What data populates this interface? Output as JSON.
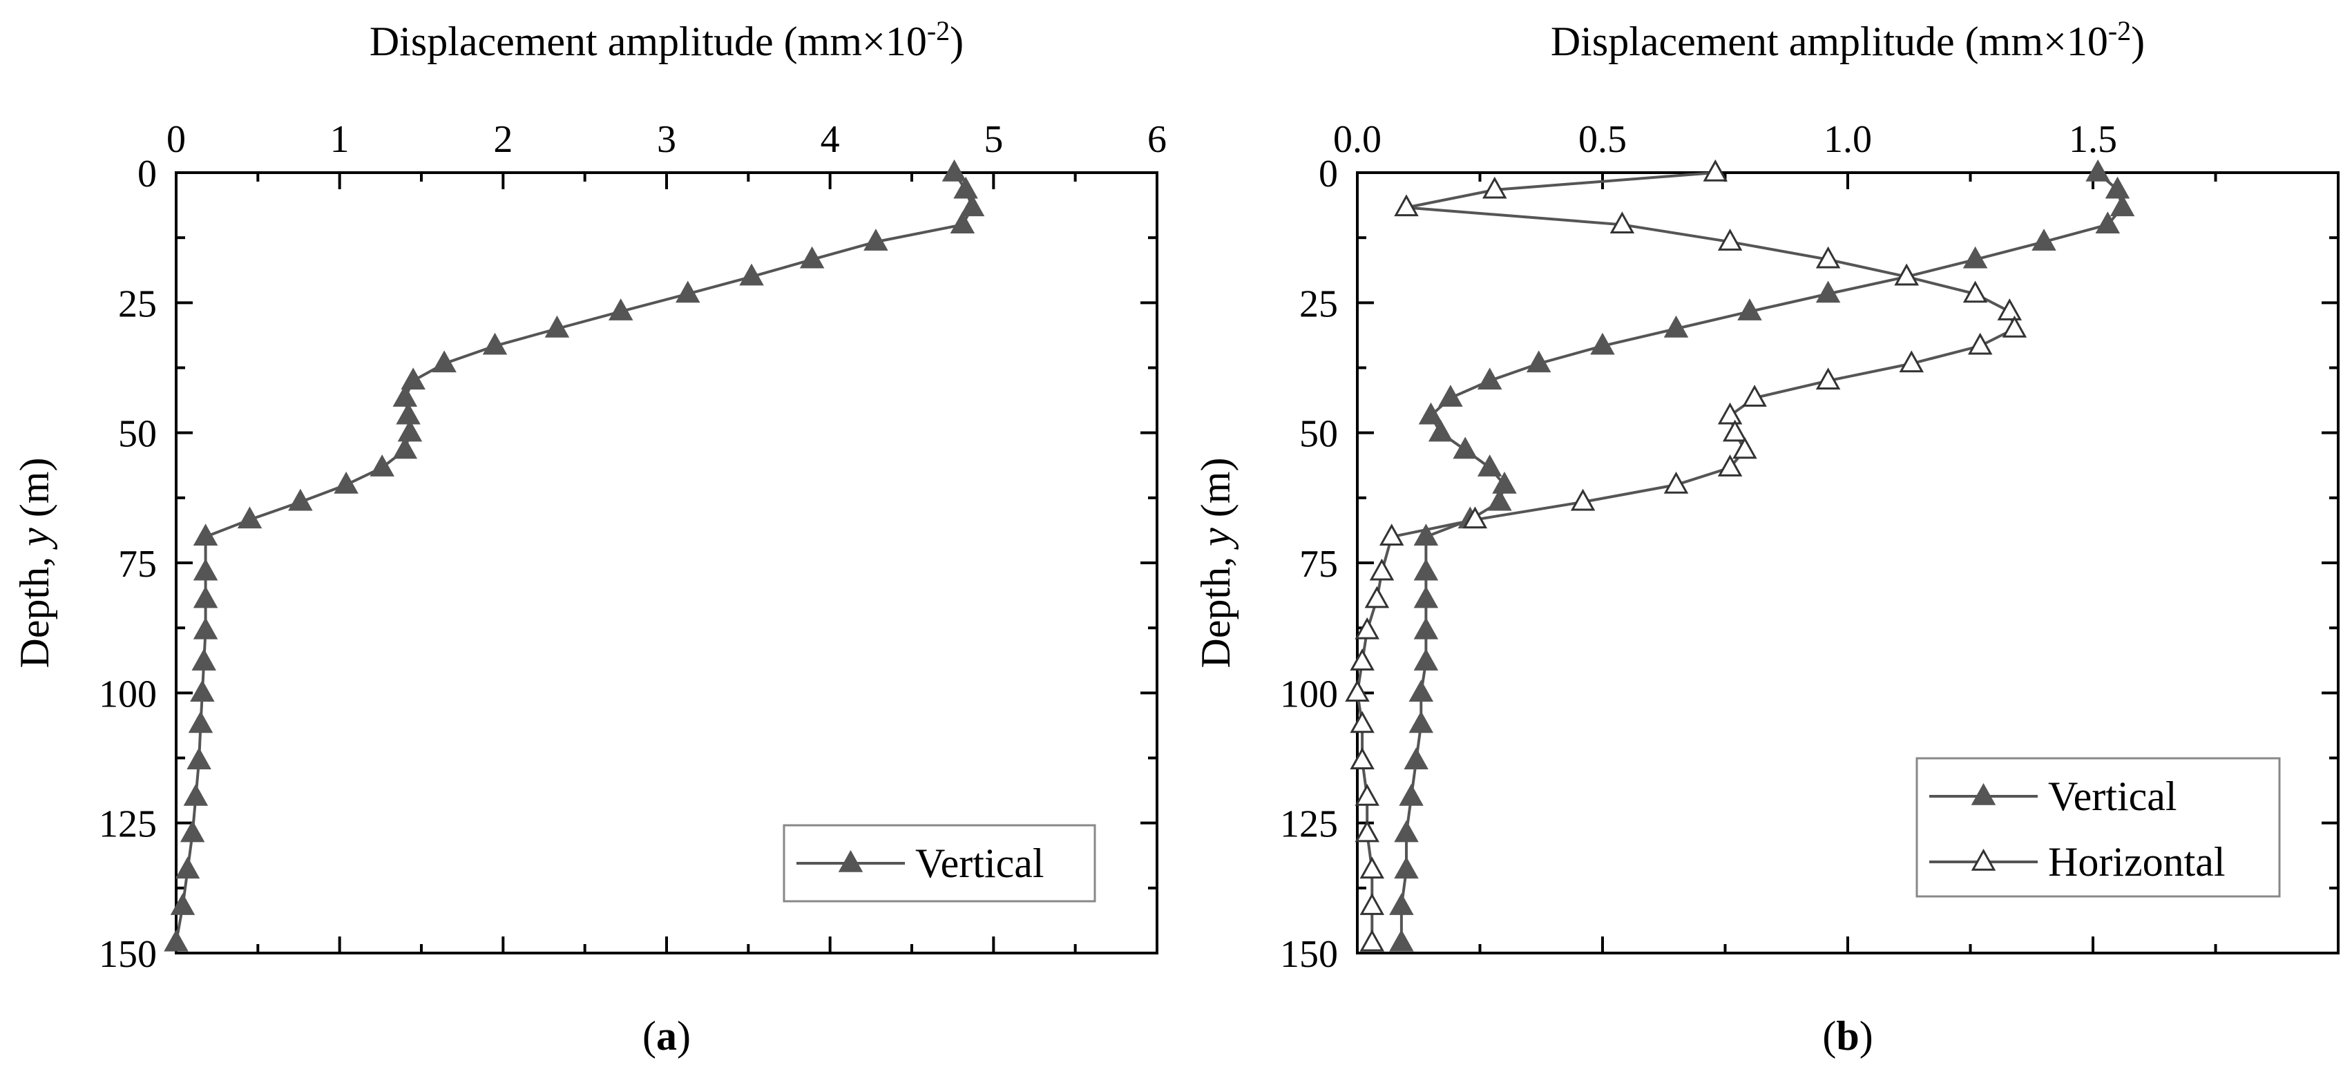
{
  "chart_data": [
    {
      "id": "a",
      "type": "line",
      "panel_label": "a",
      "xlabel": "Displacement amplitude (mm×10",
      "xlabel_exponent": "-2",
      "xlabel_close": ")",
      "ylabel": "Depth, ",
      "ylabel_var": "y",
      "ylabel_unit": " (m)",
      "xlim": [
        0,
        6
      ],
      "ylim": [
        0,
        150
      ],
      "x_axis_position": "top",
      "y_inverted": true,
      "x_ticks": [
        0,
        1,
        2,
        3,
        4,
        5,
        6
      ],
      "x_tick_labels": [
        "0",
        "1",
        "2",
        "3",
        "4",
        "5",
        "6"
      ],
      "y_ticks": [
        0,
        25,
        50,
        75,
        100,
        125,
        150
      ],
      "y_tick_labels": [
        "0",
        "25",
        "50",
        "75",
        "100",
        "125",
        "150"
      ],
      "legend_position": "bottom-right",
      "series": [
        {
          "name": "Vertical",
          "marker": "filled-triangle",
          "color": "#555555",
          "points": [
            [
              4.76,
              0
            ],
            [
              4.83,
              3.3
            ],
            [
              4.87,
              6.7
            ],
            [
              4.81,
              10
            ],
            [
              4.28,
              13.3
            ],
            [
              3.89,
              16.7
            ],
            [
              3.52,
              20
            ],
            [
              3.13,
              23.3
            ],
            [
              2.72,
              26.7
            ],
            [
              2.33,
              30
            ],
            [
              1.95,
              33.3
            ],
            [
              1.64,
              36.7
            ],
            [
              1.45,
              40
            ],
            [
              1.4,
              43.3
            ],
            [
              1.42,
              46.7
            ],
            [
              1.43,
              50
            ],
            [
              1.4,
              53.3
            ],
            [
              1.26,
              56.7
            ],
            [
              1.04,
              60
            ],
            [
              0.76,
              63.3
            ],
            [
              0.45,
              66.7
            ],
            [
              0.18,
              70
            ],
            [
              0.18,
              76.7
            ],
            [
              0.18,
              82
            ],
            [
              0.18,
              88
            ],
            [
              0.17,
              94
            ],
            [
              0.16,
              100
            ],
            [
              0.15,
              106
            ],
            [
              0.14,
              113
            ],
            [
              0.12,
              120
            ],
            [
              0.1,
              127
            ],
            [
              0.07,
              134
            ],
            [
              0.04,
              141
            ],
            [
              0.0,
              148
            ]
          ]
        }
      ]
    },
    {
      "id": "b",
      "type": "line",
      "panel_label": "b",
      "xlabel": "Displacement amplitude (mm×10",
      "xlabel_exponent": "-2",
      "xlabel_close": ")",
      "ylabel": "Depth, ",
      "ylabel_var": "y",
      "ylabel_unit": " (m)",
      "xlim": [
        0,
        2
      ],
      "ylim": [
        0,
        150
      ],
      "x_axis_position": "top",
      "y_inverted": true,
      "x_ticks": [
        0,
        0.5,
        1.0,
        1.5
      ],
      "x_tick_labels": [
        "0.0",
        "0.5",
        "1.0",
        "1.5"
      ],
      "y_ticks": [
        0,
        25,
        50,
        75,
        100,
        125,
        150
      ],
      "y_tick_labels": [
        "0",
        "25",
        "50",
        "75",
        "100",
        "125",
        "150"
      ],
      "legend_position": "bottom-right",
      "series": [
        {
          "name": "Vertical",
          "marker": "filled-triangle",
          "color": "#555555",
          "points": [
            [
              1.51,
              0
            ],
            [
              1.55,
              3.3
            ],
            [
              1.56,
              6.7
            ],
            [
              1.53,
              10
            ],
            [
              1.4,
              13.3
            ],
            [
              1.26,
              16.7
            ],
            [
              1.12,
              20
            ],
            [
              0.96,
              23.3
            ],
            [
              0.8,
              26.7
            ],
            [
              0.65,
              30
            ],
            [
              0.5,
              33.3
            ],
            [
              0.37,
              36.7
            ],
            [
              0.27,
              40
            ],
            [
              0.19,
              43.3
            ],
            [
              0.15,
              46.7
            ],
            [
              0.17,
              50
            ],
            [
              0.22,
              53.3
            ],
            [
              0.27,
              56.7
            ],
            [
              0.3,
              60
            ],
            [
              0.29,
              63.3
            ],
            [
              0.23,
              66.7
            ],
            [
              0.14,
              70
            ],
            [
              0.14,
              76.7
            ],
            [
              0.14,
              82
            ],
            [
              0.14,
              88
            ],
            [
              0.14,
              94
            ],
            [
              0.13,
              100
            ],
            [
              0.13,
              106
            ],
            [
              0.12,
              113
            ],
            [
              0.11,
              120
            ],
            [
              0.1,
              127
            ],
            [
              0.1,
              134
            ],
            [
              0.09,
              141
            ],
            [
              0.09,
              148
            ]
          ]
        },
        {
          "name": "Horizontal",
          "marker": "open-triangle",
          "color": "#555555",
          "points": [
            [
              0.73,
              0
            ],
            [
              0.28,
              3.3
            ],
            [
              0.1,
              6.7
            ],
            [
              0.54,
              10
            ],
            [
              0.76,
              13.3
            ],
            [
              0.96,
              16.7
            ],
            [
              1.12,
              20
            ],
            [
              1.26,
              23.3
            ],
            [
              1.33,
              26.7
            ],
            [
              1.34,
              30
            ],
            [
              1.27,
              33.3
            ],
            [
              1.13,
              36.7
            ],
            [
              0.96,
              40
            ],
            [
              0.81,
              43.3
            ],
            [
              0.76,
              46.7
            ],
            [
              0.77,
              50
            ],
            [
              0.79,
              53.3
            ],
            [
              0.76,
              56.7
            ],
            [
              0.65,
              60
            ],
            [
              0.46,
              63.3
            ],
            [
              0.24,
              66.7
            ],
            [
              0.07,
              70
            ],
            [
              0.05,
              76.7
            ],
            [
              0.04,
              82
            ],
            [
              0.02,
              88
            ],
            [
              0.01,
              94
            ],
            [
              0.0,
              100
            ],
            [
              0.01,
              106
            ],
            [
              0.01,
              113
            ],
            [
              0.02,
              120
            ],
            [
              0.02,
              127
            ],
            [
              0.03,
              134
            ],
            [
              0.03,
              141
            ],
            [
              0.03,
              148
            ]
          ]
        }
      ]
    }
  ]
}
